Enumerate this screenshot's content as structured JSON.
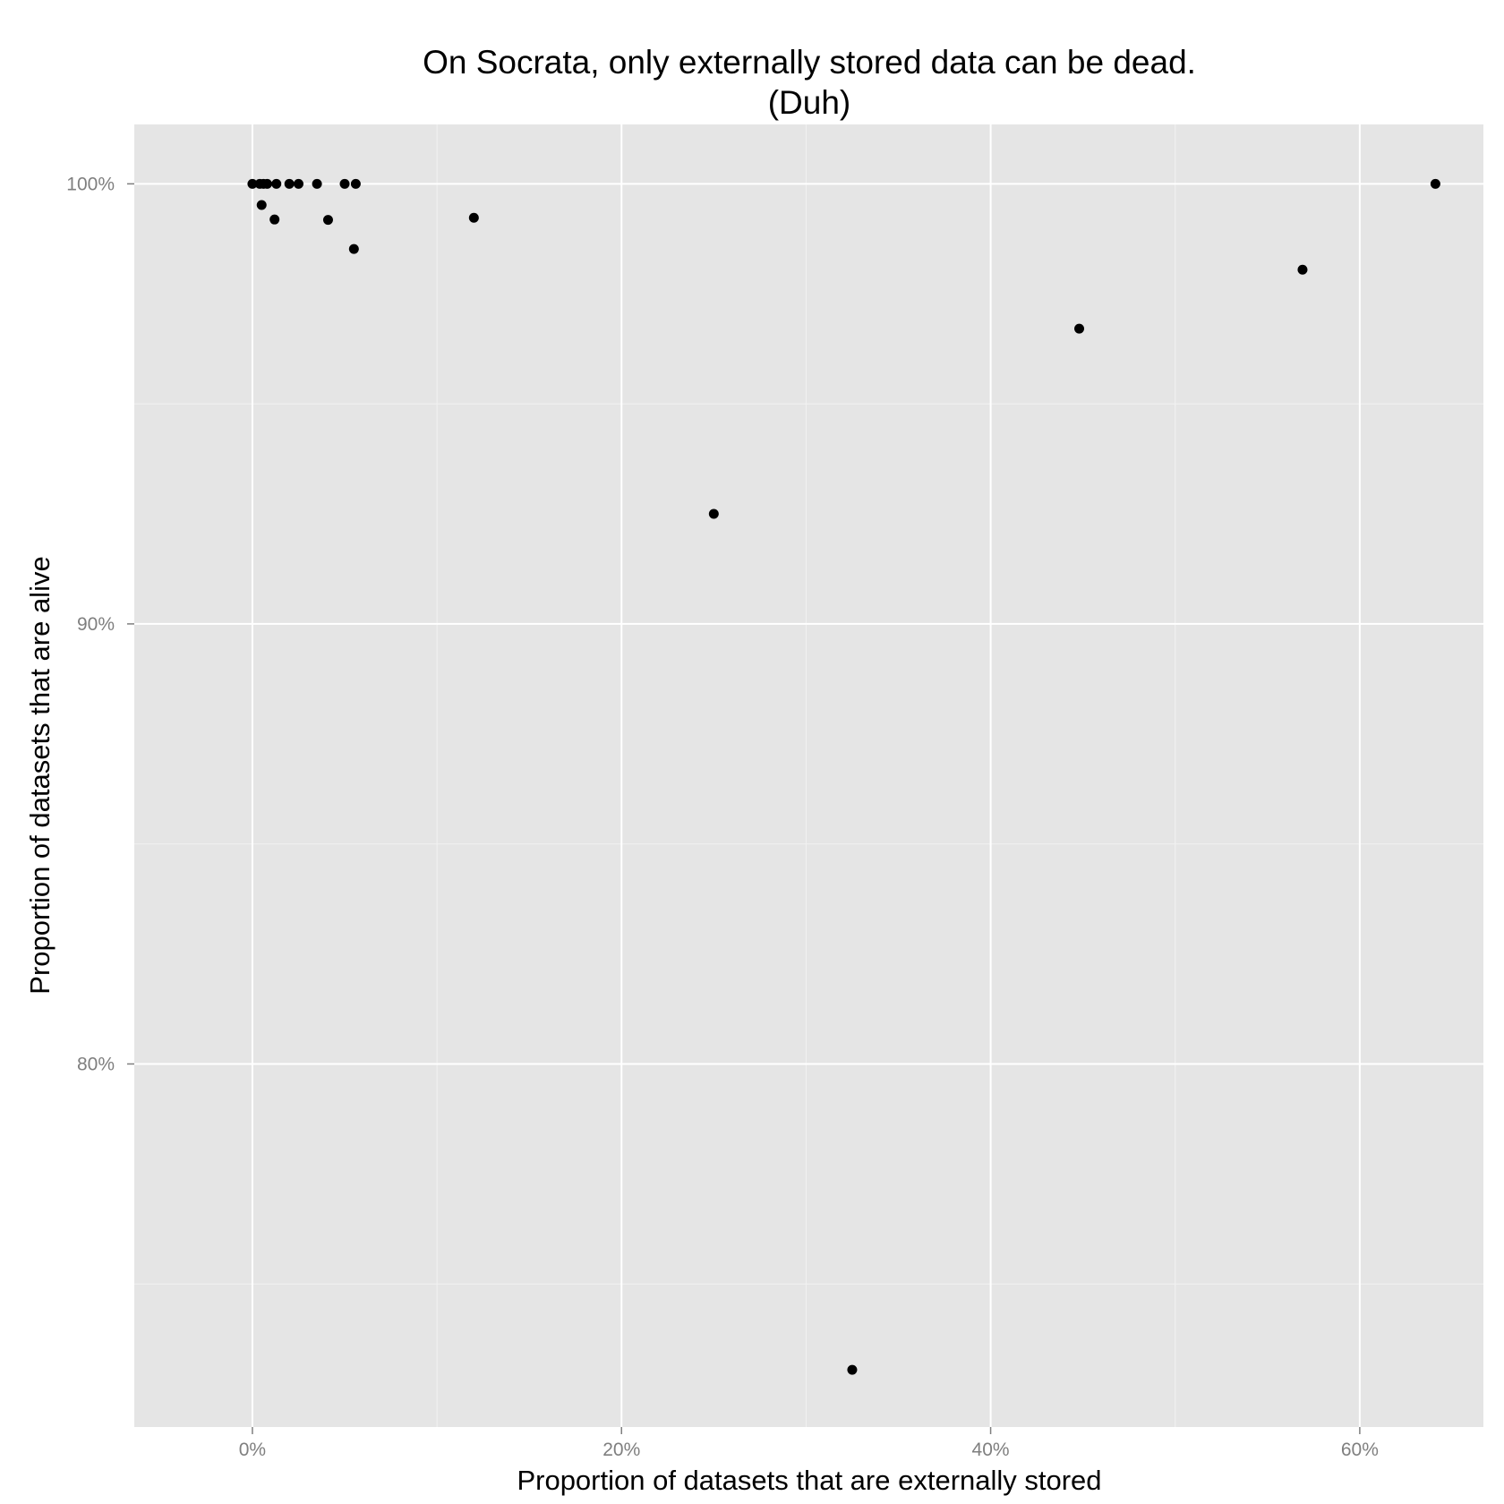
{
  "chart_data": {
    "type": "scatter",
    "title": "On Socrata, only externally stored data can be dead.",
    "subtitle": "(Duh)",
    "xlabel": "Proportion of datasets that are externally stored",
    "ylabel": "Proportion of datasets that are alive",
    "xlim": [
      -0.064,
      0.667
    ],
    "ylim": [
      0.7175,
      1.0135
    ],
    "x_ticks": [
      {
        "value": 0.0,
        "label": "0%"
      },
      {
        "value": 0.2,
        "label": "20%"
      },
      {
        "value": 0.4,
        "label": "40%"
      },
      {
        "value": 0.6,
        "label": "60%"
      }
    ],
    "y_ticks": [
      {
        "value": 0.8,
        "label": "80%"
      },
      {
        "value": 0.9,
        "label": "90%"
      },
      {
        "value": 1.0,
        "label": "100%"
      }
    ],
    "x_minor": [
      0.1,
      0.3,
      0.5
    ],
    "y_minor": [
      0.75,
      0.85,
      0.95
    ],
    "grid": true,
    "points": [
      {
        "x": 0.0,
        "y": 1.0
      },
      {
        "x": 0.004,
        "y": 1.0
      },
      {
        "x": 0.006,
        "y": 1.0
      },
      {
        "x": 0.008,
        "y": 1.0
      },
      {
        "x": 0.005,
        "y": 0.9952
      },
      {
        "x": 0.012,
        "y": 0.9919
      },
      {
        "x": 0.013,
        "y": 1.0
      },
      {
        "x": 0.02,
        "y": 1.0
      },
      {
        "x": 0.025,
        "y": 1.0
      },
      {
        "x": 0.035,
        "y": 1.0
      },
      {
        "x": 0.041,
        "y": 0.9918
      },
      {
        "x": 0.05,
        "y": 1.0
      },
      {
        "x": 0.056,
        "y": 1.0
      },
      {
        "x": 0.055,
        "y": 0.9852
      },
      {
        "x": 0.12,
        "y": 0.9923
      },
      {
        "x": 0.25,
        "y": 0.925
      },
      {
        "x": 0.325,
        "y": 0.7305
      },
      {
        "x": 0.448,
        "y": 0.9671
      },
      {
        "x": 0.569,
        "y": 0.9805
      },
      {
        "x": 0.641,
        "y": 1.0
      }
    ],
    "colors": {
      "panel": "#e5e5e5",
      "grid_major": "#ffffff",
      "grid_minor": "#f2f2f2",
      "point": "#000000",
      "tick": "#7f7f7f"
    }
  }
}
